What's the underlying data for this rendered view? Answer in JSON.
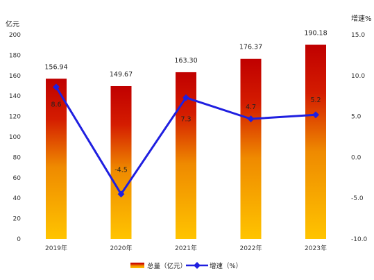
{
  "chart_data": {
    "type": "bar",
    "categories": [
      "2019年",
      "2020年",
      "2021年",
      "2022年",
      "2023年"
    ],
    "series": [
      {
        "name": "总量（亿元）",
        "type": "bar",
        "axis": "left",
        "values": [
          156.94,
          149.67,
          163.3,
          176.37,
          190.18
        ],
        "labels": [
          "156.94",
          "149.67",
          "163.30",
          "176.37",
          "190.18"
        ],
        "colors": {
          "top": "#c00000",
          "bottom": "#ffc000"
        }
      },
      {
        "name": "增速（%）",
        "type": "line",
        "axis": "right",
        "values": [
          8.6,
          -4.5,
          7.3,
          4.7,
          5.2
        ],
        "labels": [
          "8.6",
          "-4.5",
          "7.3",
          "4.7",
          "5.2"
        ],
        "color": "#1f1fe0"
      }
    ],
    "y_left": {
      "label": "亿元",
      "range": [
        0,
        200
      ],
      "ticks": [
        "0",
        "20",
        "40",
        "60",
        "80",
        "100",
        "120",
        "140",
        "160",
        "180",
        "200"
      ]
    },
    "y_right": {
      "label": "增速%",
      "range": [
        -10,
        15
      ],
      "ticks": [
        "-10.0",
        "-5.0",
        "0.0",
        "5.0",
        "10.0",
        "15.0"
      ]
    },
    "grid": false,
    "legend": "bottom-center"
  }
}
